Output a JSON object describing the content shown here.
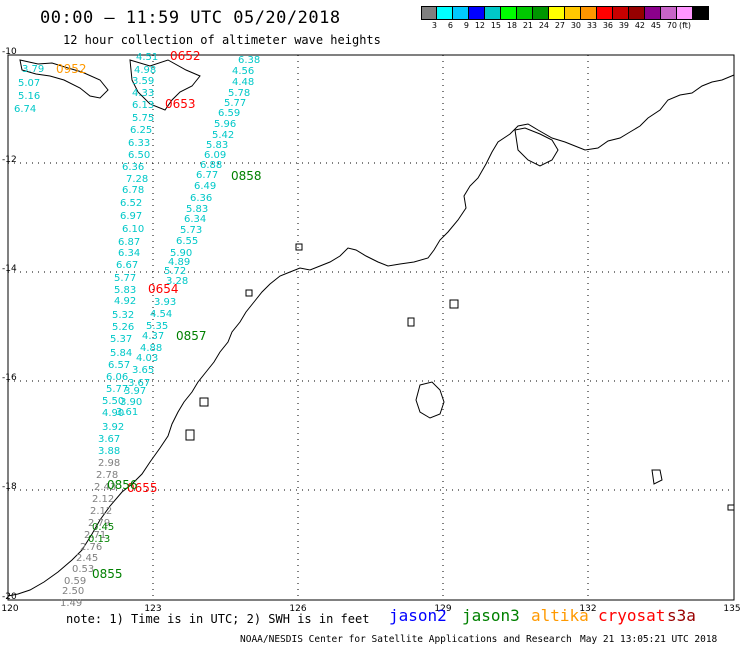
{
  "header": {
    "title": "00:00 – 11:59 UTC 05/20/2018",
    "subtitle": "12 hour collection of altimeter wave heights"
  },
  "colorbar": {
    "colors": [
      "#808080",
      "#00ffff",
      "#00c8ff",
      "#0000ff",
      "#00c8c8",
      "#00ff00",
      "#00c800",
      "#009600",
      "#ffff00",
      "#ffc800",
      "#ff9600",
      "#ff0000",
      "#c80000",
      "#960000",
      "#8b008b",
      "#c864c8",
      "#ff96ff",
      "#000000"
    ],
    "labels": [
      "3",
      "6",
      "9",
      "12",
      "15",
      "18",
      "21",
      "24",
      "27",
      "30",
      "33",
      "36",
      "39",
      "42",
      "45",
      "70",
      "(ft)"
    ]
  },
  "axes": {
    "y_ticks": [
      "-10",
      "-12",
      "-14",
      "-16",
      "-18",
      "-20"
    ],
    "x_ticks": [
      "120",
      "123",
      "126",
      "129",
      "132",
      "135"
    ]
  },
  "wave_labels": [
    {
      "t": "3.79",
      "c": "#00c8c8"
    },
    {
      "t": "5.07",
      "c": "#00c8c8"
    },
    {
      "t": "5.16",
      "c": "#00c8c8"
    },
    {
      "t": "6.74",
      "c": "#00c8c8"
    },
    {
      "t": "4.51",
      "c": "#00c8c8"
    },
    {
      "t": "4.98",
      "c": "#00c8c8"
    },
    {
      "t": "3.59",
      "c": "#00c8c8"
    },
    {
      "t": "4.33",
      "c": "#00c8c8"
    },
    {
      "t": "6.13",
      "c": "#00c8c8"
    },
    {
      "t": "5.75",
      "c": "#00c8c8"
    },
    {
      "t": "6.25",
      "c": "#00c8c8"
    },
    {
      "t": "6.33",
      "c": "#00c8c8"
    },
    {
      "t": "6.50",
      "c": "#00c8c8"
    },
    {
      "t": "6.36",
      "c": "#00c8c8"
    },
    {
      "t": "7.28",
      "c": "#00c8c8"
    },
    {
      "t": "6.78",
      "c": "#00c8c8"
    },
    {
      "t": "6.52",
      "c": "#00c8c8"
    },
    {
      "t": "6.97",
      "c": "#00c8c8"
    },
    {
      "t": "6.10",
      "c": "#00c8c8"
    },
    {
      "t": "6.87",
      "c": "#00c8c8"
    },
    {
      "t": "6.34",
      "c": "#00c8c8"
    },
    {
      "t": "6.67",
      "c": "#00c8c8"
    },
    {
      "t": "5.77",
      "c": "#00c8c8"
    },
    {
      "t": "5.83",
      "c": "#00c8c8"
    },
    {
      "t": "4.92",
      "c": "#00c8c8"
    },
    {
      "t": "5.32",
      "c": "#00c8c8"
    },
    {
      "t": "5.26",
      "c": "#00c8c8"
    },
    {
      "t": "5.37",
      "c": "#00c8c8"
    },
    {
      "t": "5.84",
      "c": "#00c8c8"
    },
    {
      "t": "6.57",
      "c": "#00c8c8"
    },
    {
      "t": "6.06",
      "c": "#00c8c8"
    },
    {
      "t": "5.77",
      "c": "#00c8c8"
    },
    {
      "t": "5.50",
      "c": "#00c8c8"
    },
    {
      "t": "4.90",
      "c": "#00c8c8"
    },
    {
      "t": "3.92",
      "c": "#00c8c8"
    },
    {
      "t": "3.67",
      "c": "#00c8c8"
    },
    {
      "t": "3.88",
      "c": "#00c8c8"
    },
    {
      "t": "6.38",
      "c": "#00c8c8"
    },
    {
      "t": "4.56",
      "c": "#00c8c8"
    },
    {
      "t": "4.48",
      "c": "#00c8c8"
    },
    {
      "t": "5.78",
      "c": "#00c8c8"
    },
    {
      "t": "5.77",
      "c": "#00c8c8"
    },
    {
      "t": "6.59",
      "c": "#00c8c8"
    },
    {
      "t": "5.96",
      "c": "#00c8c8"
    },
    {
      "t": "5.42",
      "c": "#00c8c8"
    },
    {
      "t": "5.83",
      "c": "#00c8c8"
    },
    {
      "t": "6.09",
      "c": "#00c8c8"
    },
    {
      "t": "6.88",
      "c": "#00c8c8"
    },
    {
      "t": "6.77",
      "c": "#00c8c8"
    },
    {
      "t": "6.49",
      "c": "#00c8c8"
    },
    {
      "t": "6.36",
      "c": "#00c8c8"
    },
    {
      "t": "5.83",
      "c": "#00c8c8"
    },
    {
      "t": "6.34",
      "c": "#00c8c8"
    },
    {
      "t": "5.73",
      "c": "#00c8c8"
    },
    {
      "t": "6.55",
      "c": "#00c8c8"
    },
    {
      "t": "5.90",
      "c": "#00c8c8"
    },
    {
      "t": "4.89",
      "c": "#00c8c8"
    },
    {
      "t": "5.72",
      "c": "#00c8c8"
    },
    {
      "t": "3.28",
      "c": "#00c8c8"
    },
    {
      "t": "3.93",
      "c": "#00c8c8"
    },
    {
      "t": "4.54",
      "c": "#00c8c8"
    },
    {
      "t": "5.35",
      "c": "#00c8c8"
    },
    {
      "t": "4.37",
      "c": "#00c8c8"
    },
    {
      "t": "4.88",
      "c": "#00c8c8"
    },
    {
      "t": "4.03",
      "c": "#00c8c8"
    },
    {
      "t": "3.65",
      "c": "#00c8c8"
    },
    {
      "t": "3.67",
      "c": "#00c8c8"
    },
    {
      "t": "3.97",
      "c": "#00c8c8"
    },
    {
      "t": "3.90",
      "c": "#00c8c8"
    },
    {
      "t": "3.61",
      "c": "#00c8c8"
    },
    {
      "t": "2.98",
      "c": "#808080"
    },
    {
      "t": "2.78",
      "c": "#808080"
    },
    {
      "t": "2.43",
      "c": "#808080"
    },
    {
      "t": "2.12",
      "c": "#808080"
    },
    {
      "t": "2.12",
      "c": "#808080"
    },
    {
      "t": "2.79",
      "c": "#808080"
    },
    {
      "t": "2.71",
      "c": "#808080"
    },
    {
      "t": "2.76",
      "c": "#808080"
    },
    {
      "t": "2.45",
      "c": "#808080"
    },
    {
      "t": "0.53",
      "c": "#808080"
    },
    {
      "t": "0.59",
      "c": "#808080"
    },
    {
      "t": "2.50",
      "c": "#808080"
    },
    {
      "t": "1.49",
      "c": "#808080"
    },
    {
      "t": "0.45",
      "c": "#008000"
    },
    {
      "t": "0.13",
      "c": "#008000"
    }
  ],
  "time_labels": [
    {
      "t": "0952",
      "c": "#ff9900"
    },
    {
      "t": "0652",
      "c": "#ff0000"
    },
    {
      "t": "0653",
      "c": "#ff0000"
    },
    {
      "t": "0654",
      "c": "#ff0000"
    },
    {
      "t": "0655",
      "c": "#ff0000"
    },
    {
      "t": "0858",
      "c": "#008000"
    },
    {
      "t": "0857",
      "c": "#008000"
    },
    {
      "t": "0856",
      "c": "#008000"
    },
    {
      "t": "0855",
      "c": "#008000"
    }
  ],
  "bottom": {
    "note": "note: 1) Time is in UTC; 2) SWH is in feet",
    "legend": [
      {
        "name": "jason2",
        "color": "#0000ff"
      },
      {
        "name": "jason3",
        "color": "#008000"
      },
      {
        "name": "altika",
        "color": "#ff9900"
      },
      {
        "name": "cryosat",
        "color": "#ff0000"
      },
      {
        "name": "s3a",
        "color": "#990000"
      }
    ],
    "credit": "NOAA/NESDIS Center for Satellite Applications and Research",
    "timestamp": "May 21 13:05:21 UTC 2018"
  }
}
